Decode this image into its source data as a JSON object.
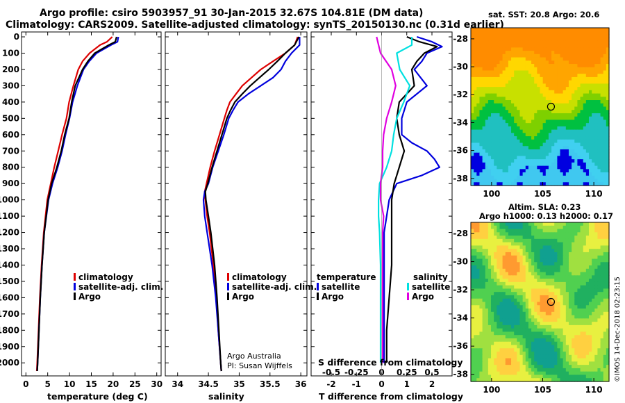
{
  "header": {
    "line1": "Argo profile: csiro 5903957_91 30-Jan-2015 32.67S 104.81E (DM data)",
    "line2": "Climatology: CARS2009. Satellite-adjusted climatology: synTS_20150130.nc (0.31d earlier)"
  },
  "depth_ticks": [
    0,
    100,
    200,
    300,
    400,
    500,
    600,
    700,
    800,
    900,
    1000,
    1100,
    1200,
    1300,
    1400,
    1500,
    1600,
    1700,
    1800,
    1900,
    2000
  ],
  "colors": {
    "climatology": "#dd0000",
    "satellite": "#0000dd",
    "argo": "#000000",
    "sat_salinity": "#00e0e0",
    "clim_salinity": "#e000e0"
  },
  "chart_data": [
    {
      "type": "line",
      "title": "temperature",
      "xlabel": "temperature (deg C)",
      "ylabel": "depth",
      "xlim": [
        -1,
        31
      ],
      "ylim": [
        2080,
        -30
      ],
      "xticks": [
        0,
        5,
        10,
        15,
        20,
        25,
        30
      ],
      "legend": [
        "climatology",
        "satellite-adj. clim.",
        "Argo"
      ],
      "series": [
        {
          "name": "climatology",
          "depth": [
            0,
            30,
            50,
            100,
            150,
            200,
            300,
            400,
            500,
            600,
            700,
            800,
            900,
            1000,
            1200,
            1400,
            1600,
            1800,
            2000,
            2050
          ],
          "values": [
            19.8,
            18.6,
            17,
            14.6,
            13,
            12,
            10.9,
            9.9,
            9.3,
            8.3,
            7.4,
            6.5,
            5.7,
            4.9,
            4.1,
            3.6,
            3.2,
            2.9,
            2.6,
            2.5
          ]
        },
        {
          "name": "satellite",
          "depth": [
            0,
            30,
            50,
            100,
            150,
            200,
            300,
            400,
            500,
            600,
            700,
            800,
            900,
            1000,
            1200,
            1400,
            1600,
            1800,
            2000,
            2050
          ],
          "values": [
            21.2,
            21,
            19.5,
            16.2,
            14.5,
            13.2,
            11.8,
            10.7,
            10,
            9.1,
            8.3,
            7.3,
            6.1,
            5.2,
            4.2,
            3.7,
            3.3,
            3,
            2.7,
            2.6
          ]
        },
        {
          "name": "Argo",
          "depth": [
            0,
            30,
            50,
            100,
            150,
            200,
            300,
            400,
            500,
            600,
            700,
            800,
            900,
            1000,
            1200,
            1400,
            1600,
            1800,
            2000,
            2050
          ],
          "values": [
            20.8,
            20.5,
            19,
            15.8,
            14.2,
            13,
            11.3,
            10.5,
            9.9,
            8.9,
            8.1,
            7.1,
            5.9,
            5.1,
            4.2,
            3.7,
            3.3,
            3,
            2.7,
            2.6
          ]
        }
      ]
    },
    {
      "type": "line",
      "title": "salinity",
      "xlabel": "salinity",
      "xlim": [
        33.8,
        36.1
      ],
      "ylim": [
        2080,
        -30
      ],
      "xticks": [
        34,
        34.5,
        35,
        35.5,
        36
      ],
      "xtick_labels": [
        "34",
        "34.5",
        "35",
        "35.5",
        "36"
      ],
      "legend": [
        "climatology",
        "satellite-adj. clim.",
        "Argo"
      ],
      "annotation": [
        "Argo Australia",
        "PI: Susan Wijffels"
      ],
      "series": [
        {
          "name": "climatology",
          "depth": [
            0,
            50,
            100,
            150,
            200,
            250,
            300,
            350,
            400,
            450,
            500,
            600,
            700,
            800,
            900,
            950,
            1000,
            1100,
            1200,
            1400,
            1600,
            1800,
            2000,
            2050
          ],
          "values": [
            35.95,
            35.9,
            35.75,
            35.55,
            35.35,
            35.2,
            35.05,
            34.95,
            34.85,
            34.8,
            34.76,
            34.68,
            34.6,
            34.53,
            34.47,
            34.44,
            34.45,
            34.48,
            34.52,
            34.58,
            34.63,
            34.66,
            34.7,
            34.71
          ]
        },
        {
          "name": "satellite",
          "depth": [
            0,
            50,
            100,
            150,
            200,
            250,
            300,
            350,
            400,
            450,
            500,
            600,
            700,
            800,
            900,
            950,
            1000,
            1100,
            1200,
            1400,
            1600,
            1800,
            2000,
            2050
          ],
          "values": [
            35.98,
            35.98,
            35.85,
            35.75,
            35.68,
            35.55,
            35.35,
            35.15,
            34.98,
            34.9,
            34.83,
            34.75,
            34.66,
            34.57,
            34.5,
            34.44,
            34.42,
            34.44,
            34.48,
            34.56,
            34.62,
            34.66,
            34.7,
            34.71
          ]
        },
        {
          "name": "Argo",
          "depth": [
            0,
            50,
            100,
            150,
            200,
            250,
            300,
            350,
            400,
            450,
            500,
            600,
            700,
            800,
            900,
            950,
            1000,
            1100,
            1200,
            1400,
            1600,
            1800,
            2000,
            2050
          ],
          "values": [
            35.97,
            35.9,
            35.75,
            35.62,
            35.48,
            35.33,
            35.18,
            35.05,
            34.93,
            34.86,
            34.8,
            34.72,
            34.64,
            34.56,
            34.49,
            34.45,
            34.46,
            34.5,
            34.54,
            34.6,
            34.64,
            34.67,
            34.7,
            34.71
          ]
        }
      ]
    },
    {
      "type": "line",
      "title": "difference from climatology",
      "xlabel": "T difference from climatology",
      "top_xlabel": "S difference from climatology",
      "xlim": [
        -2.8,
        2.8
      ],
      "ylim": [
        2080,
        -30
      ],
      "xticks": [
        -2,
        -1,
        0,
        1,
        2
      ],
      "top_xticks": [
        -0.5,
        -0.25,
        0,
        0.25,
        0.5
      ],
      "top_xtick_labels": [
        "-0.5",
        "-0.25",
        "0",
        "0.25",
        "0.5"
      ],
      "legend_left_title": "temperature",
      "legend_right_title": "salinity",
      "legend_left": [
        "satellite",
        "Argo"
      ],
      "legend_right": [
        "satellite",
        "Argo"
      ],
      "series": [
        {
          "name": "T satellite",
          "depth": [
            0,
            30,
            60,
            100,
            150,
            200,
            300,
            400,
            500,
            600,
            650,
            700,
            750,
            800,
            850,
            900,
            1000,
            1100,
            1200,
            1400,
            1600,
            1800,
            2000
          ],
          "values": [
            1.4,
            2.0,
            2.4,
            1.8,
            1.6,
            1.3,
            1.8,
            1.0,
            0.8,
            0.8,
            1.2,
            1.8,
            2.1,
            2.3,
            1.6,
            0.6,
            0.3,
            0.2,
            0.1,
            0.1,
            0.1,
            0.1,
            0.1
          ]
        },
        {
          "name": "T Argo",
          "depth": [
            0,
            30,
            60,
            100,
            150,
            200,
            300,
            400,
            500,
            600,
            650,
            700,
            750,
            800,
            850,
            900,
            1000,
            1100,
            1200,
            1400,
            1600,
            1800,
            2000
          ],
          "values": [
            1.0,
            1.5,
            2.2,
            1.7,
            1.4,
            1.2,
            1.3,
            0.7,
            0.6,
            0.7,
            0.8,
            0.9,
            0.8,
            0.7,
            0.6,
            0.5,
            0.4,
            0.4,
            0.4,
            0.4,
            0.3,
            0.2,
            0.2
          ]
        },
        {
          "name": "S satellite",
          "depth": [
            0,
            50,
            100,
            200,
            300,
            400,
            500,
            600,
            700,
            800,
            900,
            1000,
            1100,
            1200,
            1400,
            1600,
            1800,
            2000
          ],
          "values": [
            0.3,
            0.3,
            0.15,
            0.18,
            0.28,
            0.22,
            0.15,
            0.12,
            0.1,
            0.05,
            -0.02,
            -0.03,
            -0.03,
            -0.02,
            -0.01,
            -0.01,
            -0.01,
            -0.01
          ]
        },
        {
          "name": "S Argo",
          "depth": [
            0,
            50,
            100,
            200,
            300,
            400,
            500,
            600,
            700,
            800,
            900,
            1000,
            1100,
            1200,
            1400,
            1600,
            1800,
            2000
          ],
          "values": [
            -0.05,
            -0.03,
            -0.01,
            0.1,
            0.14,
            0.1,
            0.05,
            0.02,
            0.01,
            0.01,
            -0.01,
            -0.01,
            0.02,
            0.01,
            0.01,
            0.01,
            0.01,
            0.01
          ]
        }
      ]
    }
  ],
  "sst_map": {
    "title": "sat. SST: 20.8 Argo: 20.6",
    "lon_ticks": [
      "100",
      "105",
      "110"
    ],
    "lat_ticks": [
      "-28",
      "-30",
      "-32",
      "-34",
      "-36",
      "-38"
    ]
  },
  "sla_map": {
    "title1": "Altim. SLA: 0.23",
    "title2": "Argo h1000: 0.13 h2000: 0.17",
    "lon_ticks": [
      "100",
      "105",
      "110"
    ],
    "lat_ticks": [
      "-28",
      "-30",
      "-32",
      "-34",
      "-36",
      "-38"
    ],
    "credit": "©IMOS 14-Dec-2018 02:23:15"
  }
}
